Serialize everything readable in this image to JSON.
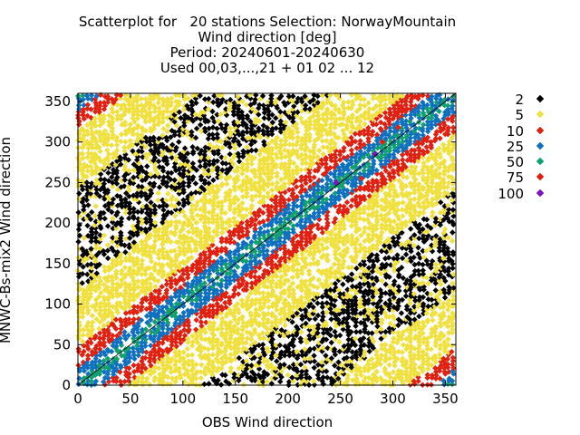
{
  "chart_data": {
    "type": "scatter",
    "title_lines": [
      "Scatterplot for   20 stations Selection: NorwayMountain",
      "Wind direction [deg]",
      "Period: 20240601-20240630",
      "Used 00,03,...,21 + 01 02 ... 12"
    ],
    "xlabel": "OBS Wind direction",
    "ylabel": "MNWC-Bs-mix2 Wind direction",
    "xlim": [
      0,
      360
    ],
    "ylim": [
      0,
      360
    ],
    "xticks": [
      0,
      50,
      100,
      150,
      200,
      250,
      300,
      350
    ],
    "yticks": [
      0,
      50,
      100,
      150,
      200,
      250,
      300,
      350
    ],
    "diagonal_line": true,
    "grid": false,
    "legend_placement": "right",
    "legend": [
      {
        "label": "2",
        "color": "#000000"
      },
      {
        "label": "5",
        "color": "#f0e040"
      },
      {
        "label": "10",
        "color": "#e02010"
      },
      {
        "label": "25",
        "color": "#1070c0"
      },
      {
        "label": "50",
        "color": "#10a070"
      },
      {
        "label": "75",
        "color": "#e02010"
      },
      {
        "label": "100",
        "color": "#8010c0"
      }
    ],
    "density_bands": [
      {
        "count_class": "25",
        "diagonal_halfwidth": 22
      },
      {
        "count_class": "50",
        "diagonal_halfwidth": 9
      },
      {
        "count_class": "10",
        "diagonal_halfwidth": 45
      },
      {
        "count_class": "5",
        "diagonal_halfwidth": 120
      },
      {
        "count_class": "2",
        "diagonal_halfwidth": 180
      }
    ],
    "sample_points": [
      {
        "x": 246,
        "y": 250,
        "class": "100"
      },
      {
        "x": 283,
        "y": 285,
        "class": "100"
      },
      {
        "x": 290,
        "y": 300,
        "class": "75"
      },
      {
        "x": 270,
        "y": 255,
        "class": "75"
      },
      {
        "x": 305,
        "y": 318,
        "class": "75"
      }
    ]
  }
}
